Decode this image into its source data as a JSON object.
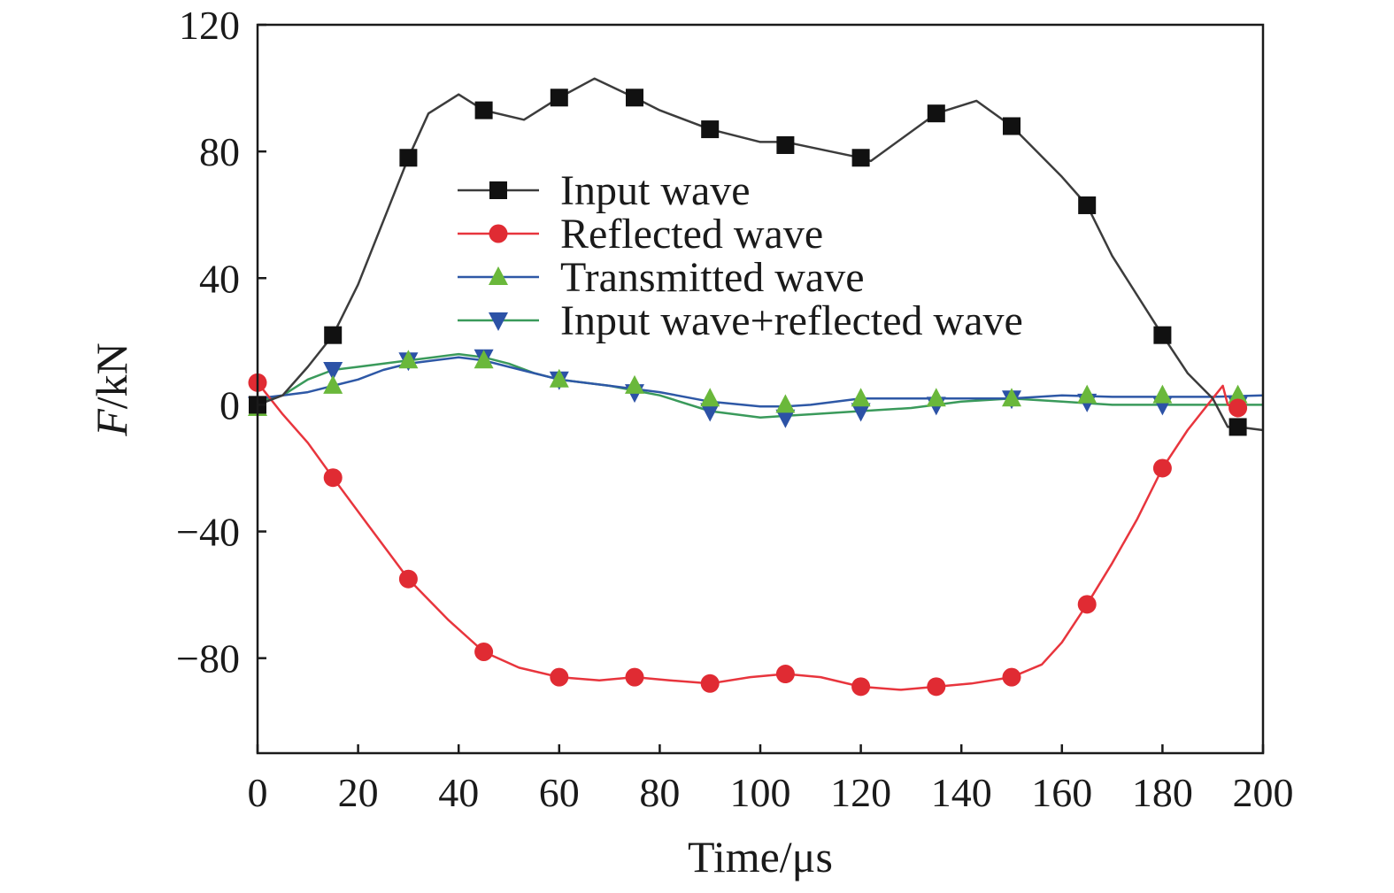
{
  "chart_data": {
    "type": "line",
    "xlabel": "Time/μs",
    "ylabel_italic": "F",
    "ylabel_rest": "/kN",
    "xlim": [
      0,
      200
    ],
    "ylim": [
      -110,
      120
    ],
    "xticks": [
      0,
      20,
      40,
      60,
      80,
      100,
      120,
      140,
      160,
      180,
      200
    ],
    "yticks": [
      120,
      80,
      40,
      0,
      -40,
      -80
    ],
    "ytick_labels": [
      "120",
      "80",
      "40",
      "0",
      "−40",
      "−80"
    ],
    "grid": false,
    "legend_position": "center",
    "series": [
      {
        "name": "Input wave",
        "color": "#3c3c3c",
        "marker": "square",
        "marker_color": "#111111",
        "x": [
          0,
          5,
          10,
          15,
          20,
          25,
          30,
          34,
          40,
          45,
          53,
          60,
          67,
          75,
          80,
          90,
          100,
          105,
          120,
          122,
          135,
          143,
          150,
          160,
          165,
          170,
          180,
          185,
          190,
          193,
          195,
          200
        ],
        "y": [
          0,
          3,
          12,
          22,
          38,
          58,
          78,
          92,
          98,
          93,
          90,
          97,
          103,
          97,
          93,
          87,
          83,
          83,
          78,
          77,
          92,
          96,
          88,
          72,
          63,
          47,
          22,
          10,
          2,
          -7,
          -7,
          -8
        ],
        "marker_x": [
          0,
          15,
          30,
          45,
          60,
          75,
          90,
          105,
          120,
          135,
          150,
          165,
          180,
          195
        ],
        "marker_y": [
          0,
          22,
          78,
          93,
          97,
          97,
          87,
          82,
          78,
          92,
          88,
          63,
          22,
          -7
        ]
      },
      {
        "name": "Reflected wave",
        "color": "#e8353d",
        "marker": "circle",
        "marker_color": "#e02b33",
        "x": [
          0,
          5,
          10,
          15,
          22,
          30,
          38,
          45,
          52,
          60,
          68,
          75,
          82,
          90,
          98,
          105,
          112,
          120,
          128,
          135,
          142,
          150,
          156,
          160,
          165,
          170,
          175,
          180,
          185,
          188,
          190,
          192,
          193,
          195
        ],
        "y": [
          7,
          -3,
          -12,
          -23,
          -38,
          -55,
          -68,
          -78,
          -83,
          -86,
          -87,
          -86,
          -87,
          -88,
          -86,
          -85,
          -86,
          -89,
          -90,
          -89,
          -88,
          -86,
          -82,
          -75,
          -63,
          -50,
          -36,
          -20,
          -8,
          -2,
          2,
          6,
          0,
          -1
        ],
        "marker_x": [
          0,
          15,
          30,
          45,
          60,
          75,
          90,
          105,
          120,
          135,
          150,
          165,
          180,
          195
        ],
        "marker_y": [
          7,
          -23,
          -55,
          -78,
          -86,
          -86,
          -88,
          -85,
          -89,
          -89,
          -86,
          -63,
          -20,
          -1
        ]
      },
      {
        "name": "Transmitted wave",
        "color": "#2e58a6",
        "marker": "triangle-up",
        "marker_color": "#6ab83b",
        "x": [
          0,
          5,
          10,
          15,
          20,
          25,
          30,
          35,
          40,
          45,
          50,
          55,
          60,
          70,
          80,
          90,
          100,
          105,
          110,
          120,
          130,
          140,
          150,
          160,
          170,
          180,
          190,
          200
        ],
        "y": [
          2,
          3,
          4,
          6,
          8,
          11,
          13,
          14,
          15,
          14,
          12,
          10,
          8,
          6,
          4,
          1,
          -0.5,
          -0.5,
          0,
          2,
          2,
          2,
          2,
          3,
          2.5,
          2.5,
          2.5,
          3
        ],
        "marker_x": [
          0,
          15,
          30,
          45,
          60,
          75,
          90,
          105,
          120,
          135,
          150,
          165,
          180,
          195
        ],
        "marker_y": [
          -1,
          6,
          14,
          14,
          8,
          6,
          2,
          0,
          2,
          2,
          2,
          3,
          3,
          3
        ]
      },
      {
        "name": "Input wave+reflected wave",
        "color": "#3a9a5b",
        "marker": "triangle-down",
        "marker_color": "#2c52a6",
        "x": [
          0,
          5,
          10,
          15,
          20,
          25,
          30,
          35,
          40,
          45,
          50,
          55,
          60,
          70,
          80,
          90,
          100,
          105,
          110,
          120,
          130,
          140,
          150,
          160,
          170,
          180,
          190,
          200
        ],
        "y": [
          1,
          3,
          8,
          11,
          12,
          13,
          14,
          15,
          16,
          15,
          13,
          10,
          8,
          6,
          3,
          -2,
          -4,
          -3.5,
          -3,
          -2,
          -1,
          1,
          2,
          1,
          0,
          0,
          0,
          0
        ],
        "marker_x": [
          0,
          15,
          30,
          45,
          60,
          75,
          90,
          105,
          120,
          135,
          150,
          165,
          180,
          195
        ],
        "marker_y": [
          0,
          11,
          14,
          15,
          8,
          4,
          -2,
          -4,
          -2,
          0,
          2,
          1,
          0,
          0
        ]
      }
    ]
  }
}
